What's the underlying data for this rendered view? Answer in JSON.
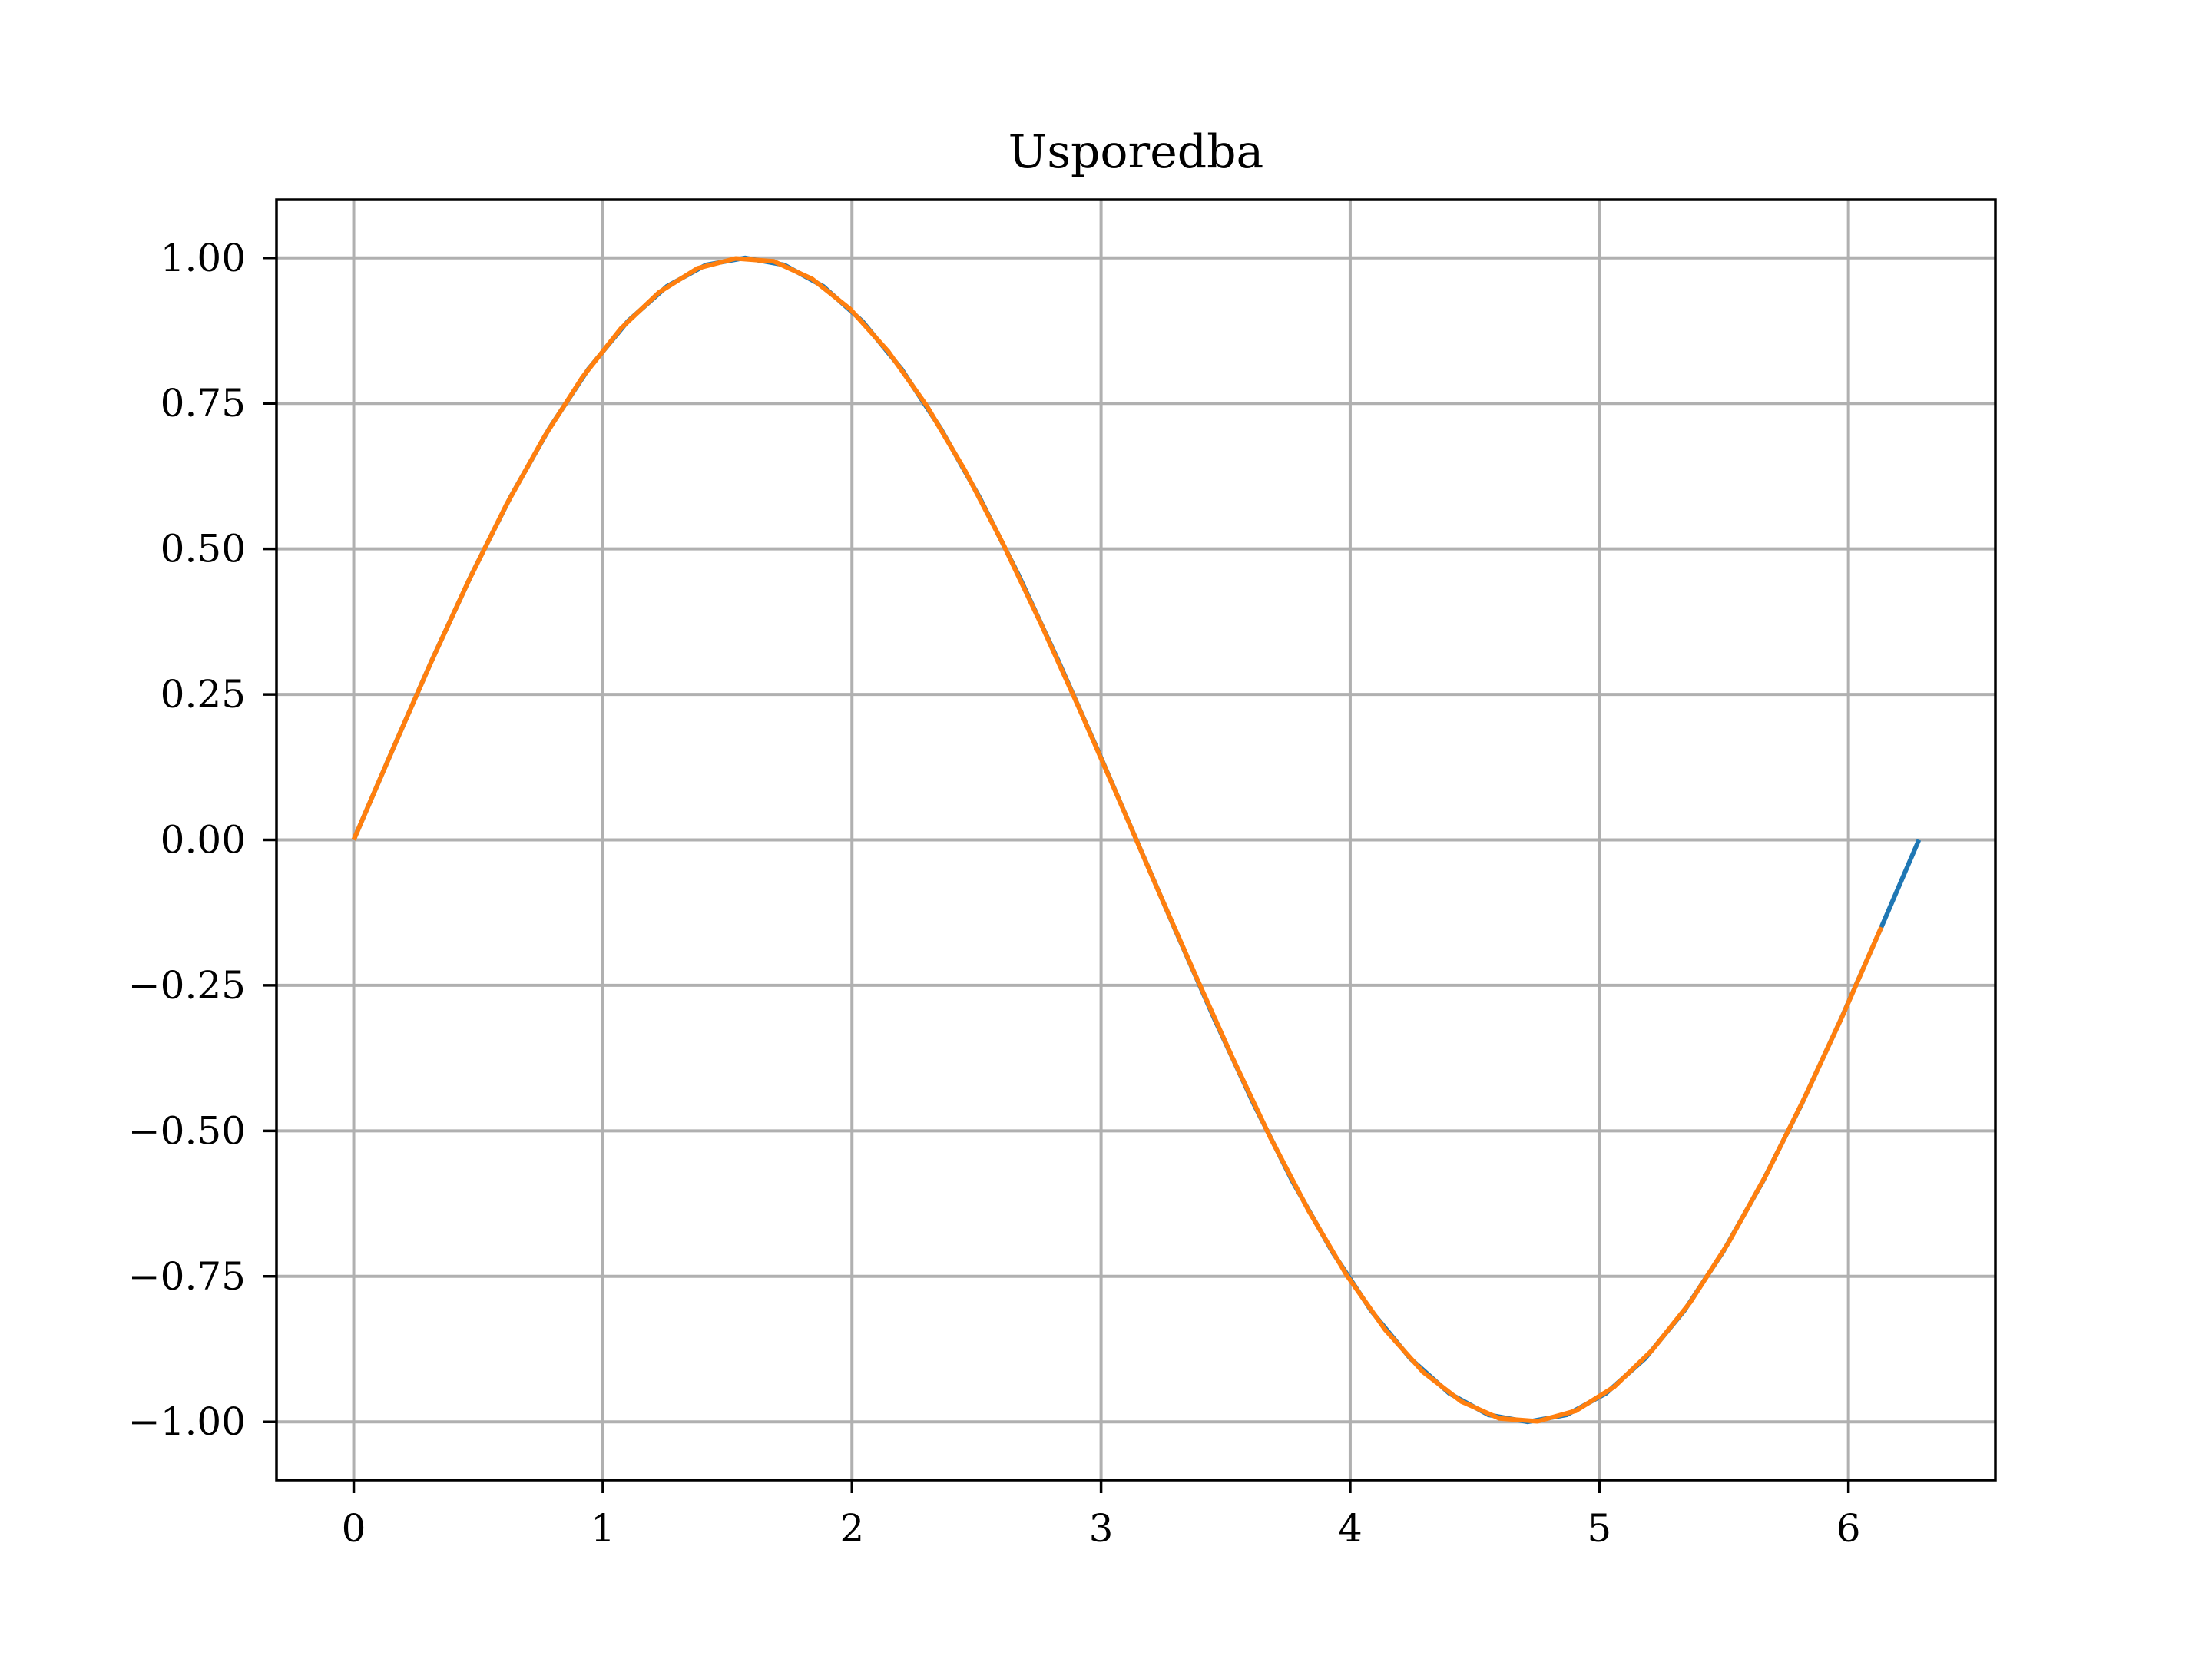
{
  "chart_data": {
    "type": "line",
    "title": "Usporedba",
    "xlabel": "",
    "ylabel": "",
    "xlim": [
      -0.31,
      6.59
    ],
    "ylim": [
      -1.1,
      1.1
    ],
    "grid": true,
    "x_ticks": [
      {
        "value": 0,
        "label": "0"
      },
      {
        "value": 1,
        "label": "1"
      },
      {
        "value": 2,
        "label": "2"
      },
      {
        "value": 3,
        "label": "3"
      },
      {
        "value": 4,
        "label": "4"
      },
      {
        "value": 5,
        "label": "5"
      },
      {
        "value": 6,
        "label": "6"
      }
    ],
    "y_ticks": [
      {
        "value": 1.0,
        "label": "1.00"
      },
      {
        "value": 0.75,
        "label": "0.75"
      },
      {
        "value": 0.5,
        "label": "0.50"
      },
      {
        "value": 0.25,
        "label": "0.25"
      },
      {
        "value": 0.0,
        "label": "0.00"
      },
      {
        "value": -0.25,
        "label": "−0.25"
      },
      {
        "value": -0.5,
        "label": "−0.50"
      },
      {
        "value": -0.75,
        "label": "−0.75"
      },
      {
        "value": -1.0,
        "label": "−1.00"
      }
    ],
    "series": [
      {
        "color": "#1f77b4",
        "x": [
          0.0,
          0.157,
          0.314,
          0.471,
          0.628,
          0.785,
          0.942,
          1.1,
          1.257,
          1.414,
          1.571,
          1.728,
          1.885,
          2.042,
          2.199,
          2.356,
          2.513,
          2.67,
          2.827,
          2.985,
          3.142,
          3.299,
          3.456,
          3.613,
          3.77,
          3.927,
          4.084,
          4.241,
          4.398,
          4.555,
          4.712,
          4.869,
          5.027,
          5.184,
          5.341,
          5.498,
          5.655,
          5.812,
          5.969,
          6.126,
          6.283
        ],
        "y": [
          0.0,
          0.156,
          0.309,
          0.454,
          0.588,
          0.707,
          0.809,
          0.891,
          0.951,
          0.988,
          1.0,
          0.988,
          0.951,
          0.891,
          0.809,
          0.707,
          0.588,
          0.454,
          0.309,
          0.156,
          0.0,
          -0.156,
          -0.309,
          -0.454,
          -0.588,
          -0.707,
          -0.809,
          -0.891,
          -0.951,
          -0.988,
          -1.0,
          -0.988,
          -0.951,
          -0.891,
          -0.809,
          -0.707,
          -0.588,
          -0.454,
          -0.309,
          -0.156,
          0.0
        ]
      },
      {
        "color": "#ff7f0e",
        "x": [
          0.0,
          0.153,
          0.307,
          0.46,
          0.613,
          0.767,
          0.92,
          1.073,
          1.226,
          1.38,
          1.533,
          1.686,
          1.84,
          1.993,
          2.146,
          2.3,
          2.453,
          2.606,
          2.759,
          2.913,
          3.066,
          3.219,
          3.373,
          3.526,
          3.679,
          3.833,
          3.986,
          4.139,
          4.292,
          4.446,
          4.599,
          4.752,
          4.906,
          5.059,
          5.212,
          5.366,
          5.519,
          5.672,
          5.825,
          5.979,
          6.132
        ],
        "y": [
          0.0,
          0.152,
          0.302,
          0.444,
          0.576,
          0.694,
          0.796,
          0.879,
          0.941,
          0.982,
          0.999,
          0.994,
          0.964,
          0.912,
          0.839,
          0.746,
          0.635,
          0.509,
          0.371,
          0.225,
          0.075,
          -0.077,
          -0.227,
          -0.373,
          -0.511,
          -0.637,
          -0.748,
          -0.841,
          -0.914,
          -0.965,
          -0.994,
          -0.999,
          -0.981,
          -0.94,
          -0.877,
          -0.794,
          -0.692,
          -0.574,
          -0.442,
          -0.3,
          -0.15
        ]
      }
    ]
  }
}
